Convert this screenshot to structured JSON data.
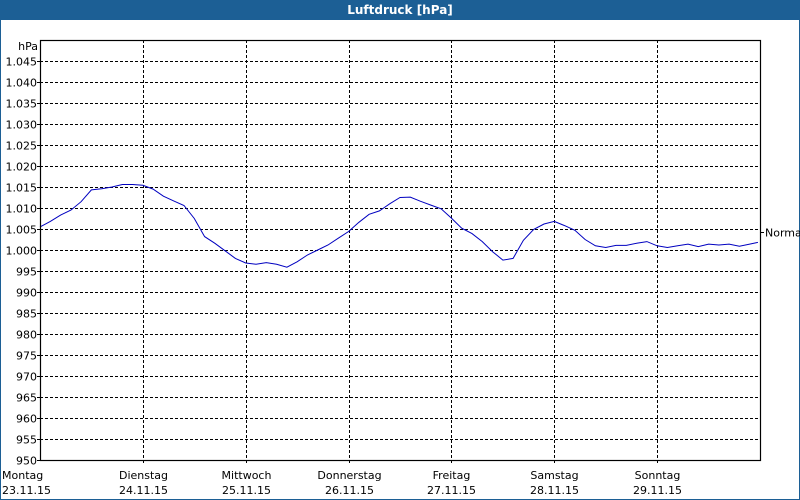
{
  "window": {
    "title": "Luftdruck [hPa]",
    "title_bar_color": "#1c5f95"
  },
  "chart_data": {
    "type": "line",
    "title": "Luftdruck [hPa]",
    "ylabel": "hPa",
    "xlabel": "",
    "ylim": [
      950,
      1050
    ],
    "yticks": [
      950,
      955,
      960,
      965,
      970,
      975,
      980,
      985,
      990,
      995,
      1000,
      1005,
      1010,
      1015,
      1020,
      1025,
      1030,
      1035,
      1040,
      1045
    ],
    "ytick_labels": [
      "950",
      "955",
      "960",
      "965",
      "970",
      "975",
      "980",
      "985",
      "990",
      "995",
      "1.000",
      "1.005",
      "1.010",
      "1.015",
      "1.020",
      "1.025",
      "1.030",
      "1.035",
      "1.040",
      "1.045"
    ],
    "grid": true,
    "grid_style": "dashed",
    "categories": [
      {
        "day": "Montag",
        "date": "23.11.15"
      },
      {
        "day": "Dienstag",
        "date": "24.11.15"
      },
      {
        "day": "Mittwoch",
        "date": "25.11.15"
      },
      {
        "day": "Donnerstag",
        "date": "26.11.15"
      },
      {
        "day": "Freitag",
        "date": "27.11.15"
      },
      {
        "day": "Samstag",
        "date": "28.11.15"
      },
      {
        "day": "Sonntag",
        "date": "29.11.15"
      }
    ],
    "reference_line": {
      "label": "Normal",
      "value": 1004.3
    },
    "series": [
      {
        "name": "Luftdruck",
        "color": "#0000c0",
        "x_days": [
          0.0,
          0.1,
          0.2,
          0.3,
          0.4,
          0.5,
          0.6,
          0.7,
          0.8,
          0.9,
          1.0,
          1.1,
          1.2,
          1.3,
          1.4,
          1.5,
          1.6,
          1.7,
          1.8,
          1.9,
          2.0,
          2.1,
          2.2,
          2.3,
          2.4,
          2.5,
          2.6,
          2.7,
          2.8,
          2.9,
          3.0,
          3.1,
          3.2,
          3.3,
          3.4,
          3.5,
          3.6,
          3.7,
          3.8,
          3.9,
          4.0,
          4.1,
          4.2,
          4.3,
          4.4,
          4.5,
          4.6,
          4.7,
          4.8,
          4.9,
          5.0,
          5.1,
          5.2,
          5.3,
          5.4,
          5.5,
          5.6,
          5.7,
          5.8,
          5.9,
          6.0,
          6.1,
          6.2,
          6.3,
          6.4,
          6.5,
          6.6,
          6.7,
          6.8,
          6.9,
          6.98
        ],
        "values": [
          1005.5,
          1006.8,
          1008.3,
          1009.5,
          1011.5,
          1014.3,
          1014.6,
          1015.0,
          1015.6,
          1015.6,
          1015.4,
          1014.5,
          1012.8,
          1011.7,
          1010.6,
          1007.5,
          1003.2,
          1001.6,
          999.8,
          998.0,
          996.9,
          996.6,
          997.0,
          996.6,
          995.9,
          997.2,
          998.8,
          1000.0,
          1001.2,
          1002.8,
          1004.4,
          1006.6,
          1008.5,
          1009.3,
          1011.0,
          1012.5,
          1012.6,
          1011.6,
          1010.7,
          1009.8,
          1007.6,
          1005.2,
          1003.9,
          1002.0,
          999.6,
          997.6,
          998.0,
          1002.3,
          1004.9,
          1006.2,
          1006.8,
          1005.8,
          1004.7,
          1002.5,
          1001.0,
          1000.6,
          1001.1,
          1001.1,
          1001.6,
          1002.0,
          1001.0,
          1000.6,
          1001.0,
          1001.4,
          1000.8,
          1001.4,
          1001.2,
          1001.4,
          1000.9,
          1001.4,
          1001.8
        ]
      }
    ]
  }
}
